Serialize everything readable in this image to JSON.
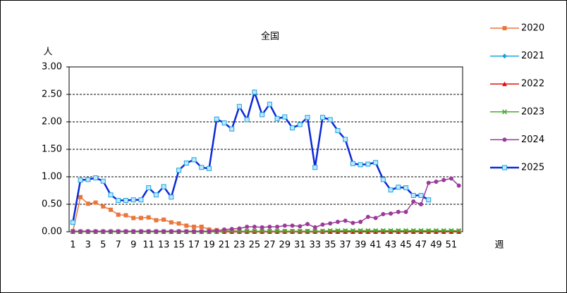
{
  "chart_data": {
    "type": "line",
    "title": "全国",
    "y_label": "人",
    "x_label": "週",
    "categories": [
      "1",
      null,
      "3",
      null,
      "5",
      null,
      "7",
      null,
      "9",
      null,
      "11",
      null,
      "13",
      null,
      "15",
      null,
      "17",
      null,
      "19",
      null,
      "21",
      null,
      "23",
      null,
      "25",
      null,
      "27",
      null,
      "29",
      null,
      "31",
      null,
      "33",
      null,
      "35",
      null,
      "37",
      null,
      "39",
      null,
      "41",
      null,
      "43",
      null,
      "45",
      null,
      "47",
      null,
      "49",
      null,
      "51",
      null
    ],
    "ylim": [
      0,
      3
    ],
    "yticks": [
      {
        "value": 0,
        "label": "0.00"
      },
      {
        "value": 0.5,
        "label": "0.50"
      },
      {
        "value": 1,
        "label": "1.00"
      },
      {
        "value": 1.5,
        "label": "1.50"
      },
      {
        "value": 2,
        "label": "2.00"
      },
      {
        "value": 2.5,
        "label": "2.50"
      },
      {
        "value": 3,
        "label": "3.00"
      }
    ],
    "grid": true,
    "legend": "right",
    "series": [
      {
        "name": "2020",
        "color": "#e8773a",
        "marker": "square",
        "values": [
          0.01,
          0.63,
          0.51,
          0.53,
          0.46,
          0.4,
          0.31,
          0.3,
          0.25,
          0.25,
          0.26,
          0.21,
          0.22,
          0.17,
          0.15,
          0.11,
          0.09,
          0.09,
          0.04,
          0.03,
          0.02,
          0.02,
          0.01,
          0.01,
          0.01,
          0.01,
          0.01,
          0.01,
          0.01,
          0.01,
          0.01,
          0.01,
          0.01,
          0.01,
          0.01,
          0.01,
          0.01,
          0.01,
          0.01,
          0.01,
          0.01,
          0.01,
          0.01,
          0.01,
          0.01,
          0.01,
          0.01,
          0.01,
          0.01,
          0.01,
          0.01,
          0.01
        ]
      },
      {
        "name": "2021",
        "color": "#1aa3e0",
        "marker": "diamond",
        "values": [
          0,
          0,
          0,
          0,
          0,
          0,
          0,
          0,
          0,
          0,
          0,
          0,
          0,
          0,
          0,
          0,
          0,
          0,
          0,
          0,
          0,
          0,
          0,
          0,
          0,
          0,
          0,
          0,
          0,
          0,
          0,
          0,
          0,
          0,
          0,
          0,
          0,
          0,
          0,
          0,
          0,
          0,
          0,
          0,
          0,
          0,
          0,
          0,
          0,
          0,
          0,
          0
        ]
      },
      {
        "name": "2022",
        "color": "#e01010",
        "marker": "triangle",
        "values": [
          0,
          0,
          0,
          0,
          0,
          0,
          0,
          0,
          0,
          0,
          0,
          0,
          0,
          0,
          0,
          0,
          0,
          0,
          0,
          0,
          0,
          0,
          0,
          0,
          0,
          0,
          0,
          0,
          0,
          0,
          0,
          0,
          0,
          0,
          0,
          0,
          0,
          0,
          0,
          0,
          0,
          0,
          0,
          0,
          0,
          0,
          0,
          0,
          0,
          0,
          0,
          0
        ]
      },
      {
        "name": "2023",
        "color": "#4aa832",
        "marker": "x",
        "values": [
          0,
          0,
          0,
          0,
          0,
          0,
          0,
          0,
          0,
          0,
          0,
          0,
          0,
          0,
          0,
          0,
          0,
          0,
          0,
          0,
          0.01,
          0.01,
          0.01,
          0.01,
          0.01,
          0.01,
          0.01,
          0.01,
          0.01,
          0.01,
          0.01,
          0.01,
          0.01,
          0.01,
          0.02,
          0.02,
          0.02,
          0.02,
          0.02,
          0.02,
          0.02,
          0.02,
          0.02,
          0.02,
          0.02,
          0.02,
          0.02,
          0.02,
          0.02,
          0.02,
          0.02,
          0.02
        ]
      },
      {
        "name": "2024",
        "color": "#9b3a9b",
        "marker": "circle",
        "values": [
          0.01,
          0.01,
          0.01,
          0.01,
          0.01,
          0.01,
          0.01,
          0.01,
          0.01,
          0.01,
          0.01,
          0.01,
          0.01,
          0.01,
          0.01,
          0.01,
          0.01,
          0.01,
          0.01,
          0.02,
          0.04,
          0.05,
          0.06,
          0.09,
          0.09,
          0.08,
          0.09,
          0.09,
          0.11,
          0.11,
          0.1,
          0.14,
          0.08,
          0.13,
          0.15,
          0.18,
          0.2,
          0.16,
          0.18,
          0.27,
          0.25,
          0.32,
          0.33,
          0.36,
          0.36,
          0.55,
          0.5,
          0.89,
          0.91,
          0.94,
          0.97,
          0.84
        ]
      },
      {
        "name": "2025",
        "color": "#0a28d8",
        "marker": "hollow-square",
        "values": [
          0.17,
          0.94,
          0.95,
          0.98,
          0.92,
          0.67,
          0.57,
          0.57,
          0.58,
          0.58,
          0.8,
          0.67,
          0.82,
          0.63,
          1.12,
          1.25,
          1.31,
          1.17,
          1.15,
          2.05,
          1.98,
          1.87,
          2.28,
          2.04,
          2.54,
          2.13,
          2.32,
          2.06,
          2.09,
          1.89,
          1.95,
          2.08,
          1.17,
          2.08,
          2.04,
          1.84,
          1.68,
          1.24,
          1.22,
          1.23,
          1.26,
          0.95,
          0.76,
          0.81,
          0.8,
          0.66,
          0.66,
          0.58,
          null,
          null,
          null,
          null
        ]
      }
    ]
  }
}
